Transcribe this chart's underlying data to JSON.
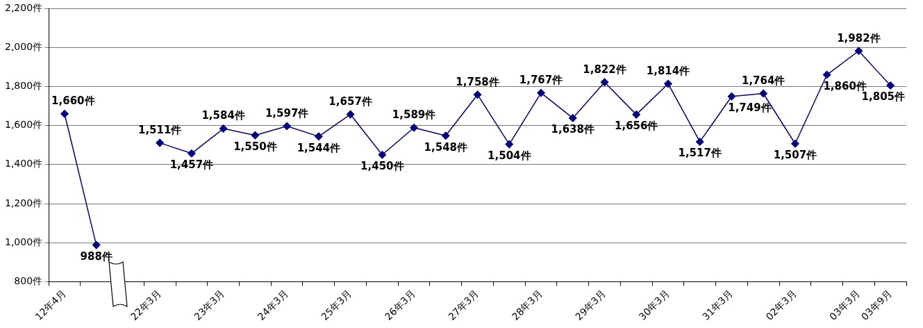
{
  "chart_data": {
    "type": "line",
    "categories": [
      "12年4月",
      null,
      null,
      "22年3月",
      null,
      "23年3月",
      null,
      "24年3月",
      null,
      "25年3月",
      null,
      "26年3月",
      null,
      "27年3月",
      null,
      "28年3月",
      null,
      "29年3月",
      null,
      "30年3月",
      null,
      "31年3月",
      null,
      "02年3月",
      null,
      "03年3月",
      "03年9月"
    ],
    "series": [
      {
        "color": "#000080",
        "values": [
          1660,
          988,
          null,
          1511,
          1457,
          1584,
          1550,
          1597,
          1544,
          1657,
          1450,
          1589,
          1548,
          1758,
          1504,
          1767,
          1638,
          1822,
          1656,
          1814,
          1517,
          1749,
          1764,
          1507,
          1860,
          1982,
          1805
        ],
        "value_labels": [
          "1,660件",
          "988件",
          null,
          "1,511件",
          "1,457件",
          "1,584件",
          "1,550件",
          "1,597件",
          "1,544件",
          "1,657件",
          "1,450件",
          "1,589件",
          "1,548件",
          "1,758件",
          "1,504件",
          "1,767件",
          "1,638件",
          "1,822件",
          "1,656件",
          "1,814件",
          "1,517件",
          "1,749件",
          "1,764件",
          "1,507件",
          "1,860件",
          "1,982件",
          "1,805件"
        ]
      }
    ],
    "ylim": [
      800,
      2200
    ],
    "yticks": [
      {
        "value": 800,
        "label": "800件"
      },
      {
        "value": 1000,
        "label": "1,000件"
      },
      {
        "value": 1200,
        "label": "1,200件"
      },
      {
        "value": 1400,
        "label": "1,400件"
      },
      {
        "value": 1600,
        "label": "1,600件"
      },
      {
        "value": 1800,
        "label": "1,800件"
      },
      {
        "value": 2000,
        "label": "2,000件"
      },
      {
        "value": 2200,
        "label": "2,200件"
      }
    ],
    "grid": "y",
    "legend": false,
    "marker": "diamond",
    "line_style": "solid"
  }
}
